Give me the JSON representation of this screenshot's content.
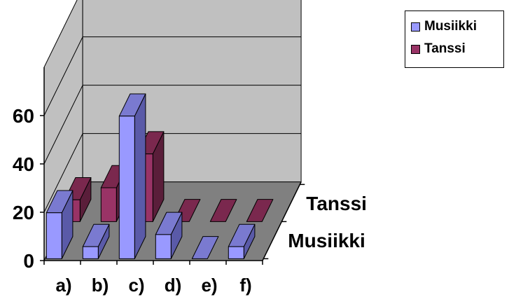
{
  "chart_data": {
    "type": "bar",
    "style": "3d-column",
    "categories": [
      "a)",
      "b)",
      "c)",
      "d)",
      "e)",
      "f)"
    ],
    "series": [
      {
        "name": "Musiikki",
        "values": [
          19,
          5,
          59,
          10,
          0,
          5
        ],
        "color": "#9999ff",
        "side": "#5a5aa8",
        "top": "#7a7ad0"
      },
      {
        "name": "Tanssi",
        "values": [
          9,
          14,
          28,
          0,
          0,
          0
        ],
        "color": "#993366",
        "side": "#5a1e3a",
        "top": "#7a284e"
      }
    ],
    "depth_labels": [
      "Tanssi",
      "Musiikki"
    ],
    "yticks": [
      0,
      20,
      40,
      60
    ],
    "ylim": [
      0,
      80
    ],
    "grid": true,
    "legend_position": "top-right",
    "wall_color": "#c0c0c0",
    "floor_color": "#808080"
  }
}
